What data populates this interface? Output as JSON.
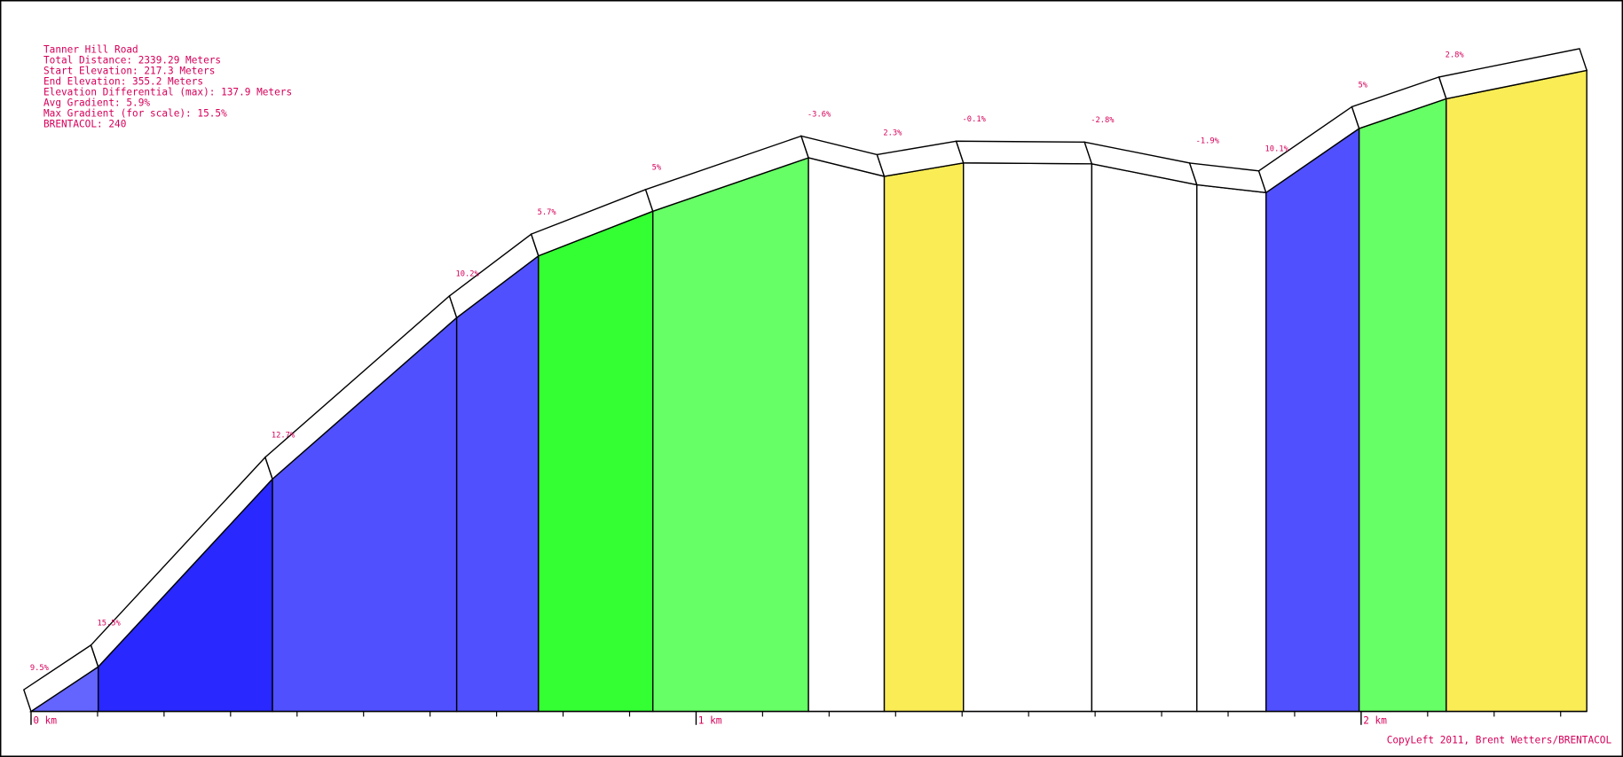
{
  "chart_data": {
    "type": "elevation-profile",
    "title": "Tanner Hill Road",
    "info_lines": [
      "Total Distance: 2339.29 Meters",
      "Start Elevation: 217.3 Meters",
      "End Elevation: 355.2 Meters",
      "Elevation Differential (max): 137.9 Meters",
      "Avg Gradient: 5.9%",
      "Max Gradient (for scale): 15.5%",
      "BRENTACOL: 240"
    ],
    "footer": "CopyLeft 2011, Brent Wetters/BRENTACOL",
    "x": [
      0,
      101,
      363,
      640,
      763,
      935,
      1169,
      1283,
      1402,
      1595,
      1753,
      1857,
      1997,
      2128,
      2339.29
    ],
    "values": [
      217.3,
      226.9,
      267.3,
      302.0,
      315.3,
      324.9,
      336.4,
      332.4,
      335.3,
      335.1,
      330.6,
      328.9,
      342.7,
      349.1,
      355.2
    ],
    "gradients": [
      9.5,
      15.5,
      12.7,
      10.2,
      5.7,
      5,
      -3.6,
      2.3,
      -0.1,
      -2.8,
      -1.9,
      10.1,
      5,
      2.8
    ],
    "gradient_labels": [
      "9.5%",
      "15.5%",
      "12.7%",
      "10.2%",
      "5.7%",
      "5%",
      "-3.6%",
      "2.3%",
      "-0.1%",
      "-2.8%",
      "-1.9%",
      "10.1%",
      "5%",
      "2.8%"
    ],
    "colors": [
      "#6464ff",
      "#2828ff",
      "#5050ff",
      "#5050ff",
      "#33ff33",
      "#66ff66",
      "#ffffff",
      "#f9ec55",
      "#ffffff",
      "#ffffff",
      "#ffffff",
      "#5050ff",
      "#66ff66",
      "#f9ec55"
    ],
    "xlim": [
      0,
      2339.29
    ],
    "ylim": [
      217.3,
      355.2
    ],
    "xticks": [
      {
        "value": 0,
        "label": "0 km"
      },
      {
        "value": 1000,
        "label": "1 km"
      },
      {
        "value": 2000,
        "label": "2 km"
      }
    ],
    "minor_xticks": [
      100,
      200,
      300,
      400,
      500,
      600,
      700,
      800,
      900,
      1100,
      1200,
      1300,
      1400,
      1500,
      1600,
      1700,
      1800,
      1900,
      2100,
      2200,
      2300
    ]
  }
}
